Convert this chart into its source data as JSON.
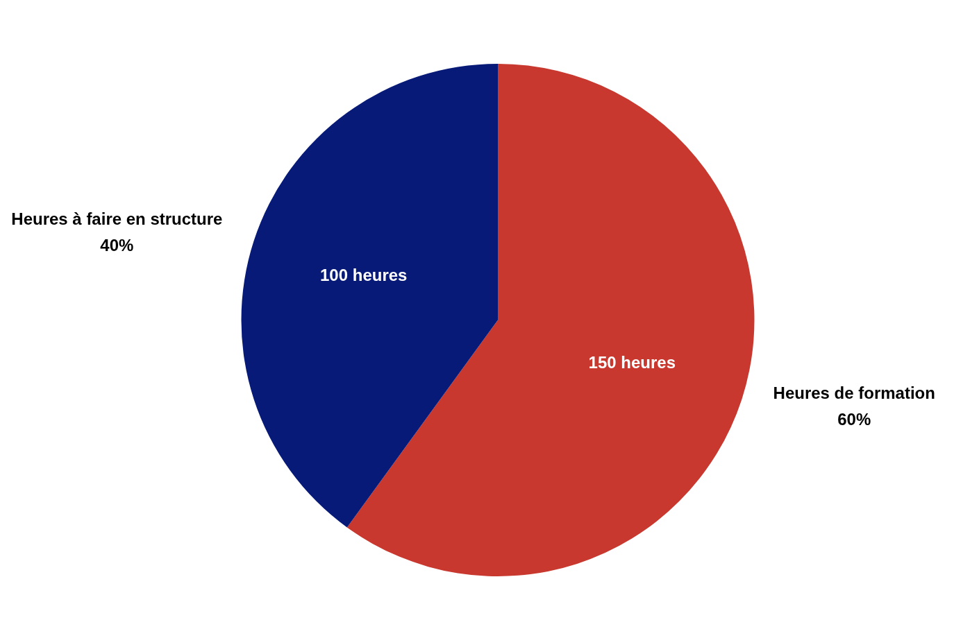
{
  "chart_data": {
    "type": "pie",
    "categories": [
      "Heures de formation\n60%",
      "Heures à faire en structure\n40%"
    ],
    "values": [
      150,
      100
    ],
    "value_labels": [
      "150 heures",
      "100 heures"
    ],
    "colors": [
      "#c8382f",
      "#071a78"
    ],
    "legend": false
  }
}
